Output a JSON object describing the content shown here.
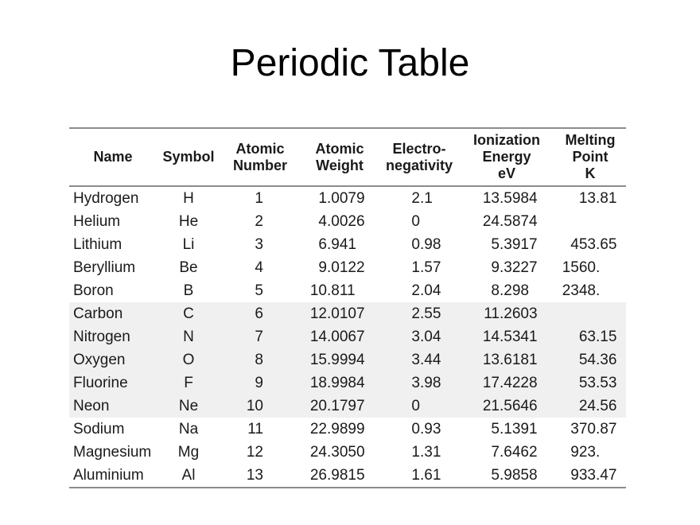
{
  "title": "Periodic Table",
  "colors": {
    "rule_gray": "#8c8c8c",
    "band_background": "#f0f0f0",
    "text": "#1a1a1a"
  },
  "table": {
    "columns": [
      {
        "id": "name",
        "lines": [
          "Name"
        ]
      },
      {
        "id": "symbol",
        "lines": [
          "Symbol"
        ]
      },
      {
        "id": "atomic-number",
        "lines": [
          "Atomic",
          "Number"
        ]
      },
      {
        "id": "atomic-weight",
        "lines": [
          "Atomic",
          "Weight"
        ]
      },
      {
        "id": "electronegativity",
        "lines": [
          "Electro-",
          "negativity"
        ]
      },
      {
        "id": "ionization-energy",
        "lines": [
          "Ionization",
          "Energy",
          "eV"
        ]
      },
      {
        "id": "melting-point",
        "lines": [
          "Melting",
          "Point",
          "K"
        ]
      }
    ],
    "rows": [
      {
        "name": "Hydrogen",
        "symbol": "H",
        "atomic_number": "1",
        "atomic_weight": "1.0079",
        "electronegativity": "2.1",
        "ionization_energy": "13.5984",
        "melting_point": "13.81"
      },
      {
        "name": "Helium",
        "symbol": "He",
        "atomic_number": "2",
        "atomic_weight": "4.0026",
        "electronegativity": "0",
        "ionization_energy": "24.5874",
        "melting_point": ""
      },
      {
        "name": "Lithium",
        "symbol": "Li",
        "atomic_number": "3",
        "atomic_weight": "6.941",
        "electronegativity": "0.98",
        "ionization_energy": "5.3917",
        "melting_point": "453.65"
      },
      {
        "name": "Beryllium",
        "symbol": "Be",
        "atomic_number": "4",
        "atomic_weight": "9.0122",
        "electronegativity": "1.57",
        "ionization_energy": "9.3227",
        "melting_point": "1560."
      },
      {
        "name": "Boron",
        "symbol": "B",
        "atomic_number": "5",
        "atomic_weight": "10.811",
        "electronegativity": "2.04",
        "ionization_energy": "8.298",
        "melting_point": "2348."
      },
      {
        "name": "Carbon",
        "symbol": "C",
        "atomic_number": "6",
        "atomic_weight": "12.0107",
        "electronegativity": "2.55",
        "ionization_energy": "11.2603",
        "melting_point": ""
      },
      {
        "name": "Nitrogen",
        "symbol": "N",
        "atomic_number": "7",
        "atomic_weight": "14.0067",
        "electronegativity": "3.04",
        "ionization_energy": "14.5341",
        "melting_point": "63.15"
      },
      {
        "name": "Oxygen",
        "symbol": "O",
        "atomic_number": "8",
        "atomic_weight": "15.9994",
        "electronegativity": "3.44",
        "ionization_energy": "13.6181",
        "melting_point": "54.36"
      },
      {
        "name": "Fluorine",
        "symbol": "F",
        "atomic_number": "9",
        "atomic_weight": "18.9984",
        "electronegativity": "3.98",
        "ionization_energy": "17.4228",
        "melting_point": "53.53"
      },
      {
        "name": "Neon",
        "symbol": "Ne",
        "atomic_number": "10",
        "atomic_weight": "20.1797",
        "electronegativity": "0",
        "ionization_energy": "21.5646",
        "melting_point": "24.56"
      },
      {
        "name": "Sodium",
        "symbol": "Na",
        "atomic_number": "11",
        "atomic_weight": "22.9899",
        "electronegativity": "0.93",
        "ionization_energy": "5.1391",
        "melting_point": "370.87"
      },
      {
        "name": "Magnesium",
        "symbol": "Mg",
        "atomic_number": "12",
        "atomic_weight": "24.3050",
        "electronegativity": "1.31",
        "ionization_energy": "7.6462",
        "melting_point": "923."
      },
      {
        "name": "Aluminium",
        "symbol": "Al",
        "atomic_number": "13",
        "atomic_weight": "26.9815",
        "electronegativity": "1.61",
        "ionization_energy": "5.9858",
        "melting_point": "933.47"
      }
    ],
    "shaded_row_range": [
      5,
      9
    ]
  }
}
